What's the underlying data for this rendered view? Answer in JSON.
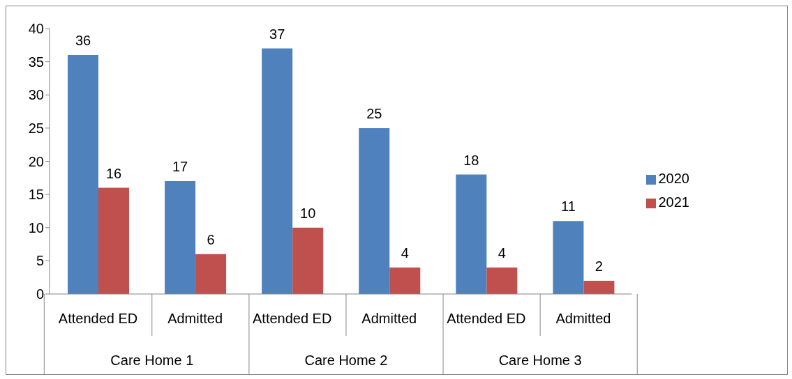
{
  "chart_data": {
    "type": "bar",
    "categories": [
      "Attended ED",
      "Admitted",
      "Attended ED",
      "Admitted",
      "Attended ED",
      "Admitted"
    ],
    "annotations": [
      "Care Home 1",
      "Care Home 2",
      "Care Home 3"
    ],
    "series": [
      {
        "name": "2020",
        "color": "#4f81bd",
        "values": [
          36,
          17,
          37,
          25,
          18,
          11
        ]
      },
      {
        "name": "2021",
        "color": "#c0504d",
        "values": [
          16,
          6,
          10,
          4,
          4,
          2
        ]
      }
    ],
    "ylim": [
      0,
      40
    ],
    "yticks": [
      0,
      5,
      10,
      15,
      20,
      25,
      30,
      35,
      40
    ],
    "grid": false,
    "legend": "right",
    "data_labels": true
  }
}
